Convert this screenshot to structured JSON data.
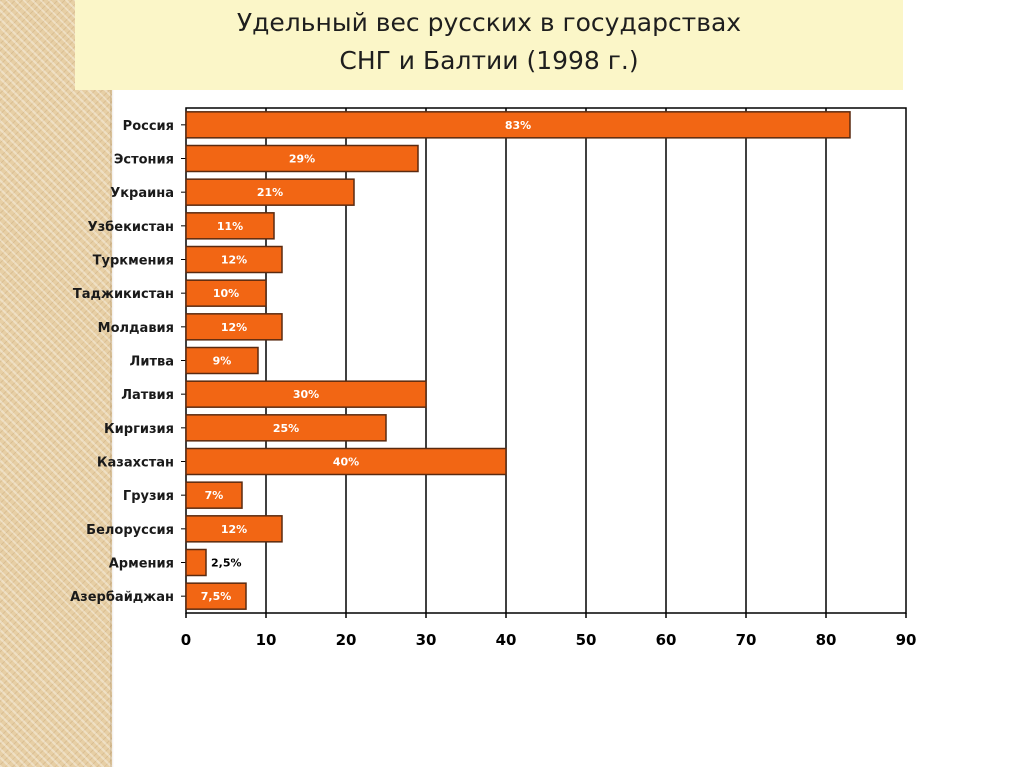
{
  "title": {
    "line1": "Удельный вес русских в государствах",
    "line2": "СНГ и Балтии (1998 г.)"
  },
  "colors": {
    "bar_fill": "#f26614",
    "bar_stroke": "#5a2a10",
    "title_bg": "#fbf6c8",
    "side_stripe": "#e7cfa5"
  },
  "chart_data": {
    "type": "bar",
    "orientation": "horizontal",
    "categories": [
      "Россия",
      "Эстония",
      "Украина",
      "Узбекистан",
      "Туркмения",
      "Таджикистан",
      "Молдавия",
      "Литва",
      "Латвия",
      "Киргизия",
      "Казахстан",
      "Грузия",
      "Белоруссия",
      "Армения",
      "Азербайджан"
    ],
    "values": [
      83,
      29,
      21,
      11,
      12,
      10,
      12,
      9,
      30,
      25,
      40,
      7,
      12,
      2.5,
      7.5
    ],
    "data_labels": [
      "83%",
      "29%",
      "21%",
      "11%",
      "12%",
      "10%",
      "12%",
      "9%",
      "30%",
      "25%",
      "40%",
      "7%",
      "12%",
      "2,5%",
      "7,5%"
    ],
    "xlim": [
      0,
      90
    ],
    "xticks": [
      0,
      10,
      20,
      30,
      40,
      50,
      60,
      70,
      80,
      90
    ],
    "grid": "vertical",
    "legend": "none"
  }
}
